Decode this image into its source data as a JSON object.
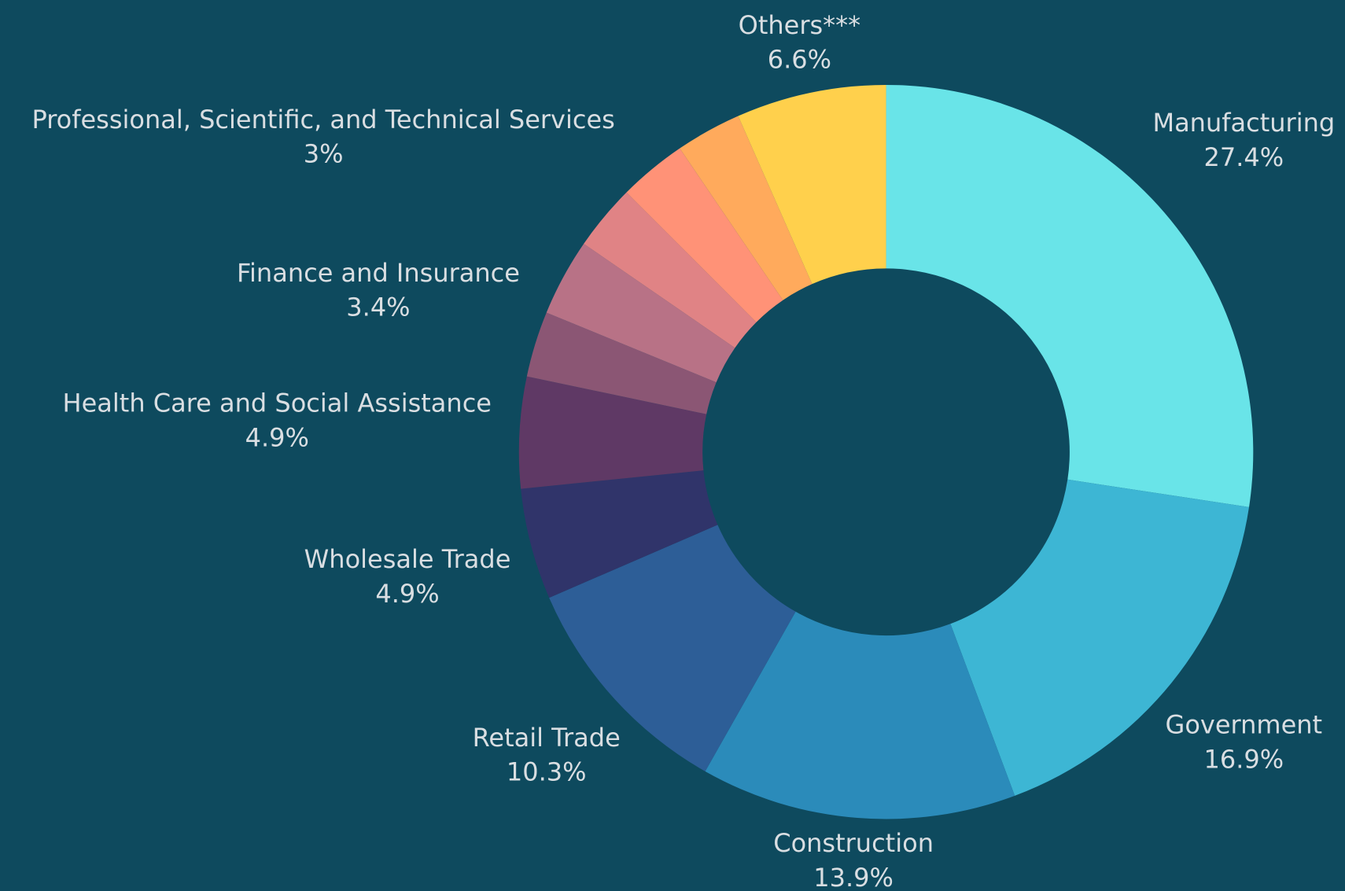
{
  "chart_data": {
    "type": "donut",
    "categories": [
      "Manufacturing",
      "Government",
      "Construction",
      "Retail Trade",
      "Wholesale Trade",
      "Health Care and Social Assistance",
      null,
      "Finance and Insurance",
      null,
      "Professional, Scientific, and Technical Services",
      null,
      "Others***"
    ],
    "values": [
      27.4,
      16.9,
      13.9,
      10.3,
      4.9,
      4.9,
      2.9,
      3.4,
      2.9,
      3,
      2.9,
      6.6
    ],
    "value_labels": [
      "27.4%",
      "16.9%",
      "13.9%",
      "10.3%",
      "4.9%",
      "4.9%",
      null,
      "3.4%",
      null,
      "3%",
      null,
      "6.6%"
    ],
    "colors": [
      "#69e4e8",
      "#3db6d4",
      "#2b8bba",
      "#2d5e97",
      "#30346a",
      "#5f3965",
      "#8b5674",
      "#b87286",
      "#e08385",
      "#ff9277",
      "#ffaa5c",
      "#ffd04c"
    ]
  }
}
